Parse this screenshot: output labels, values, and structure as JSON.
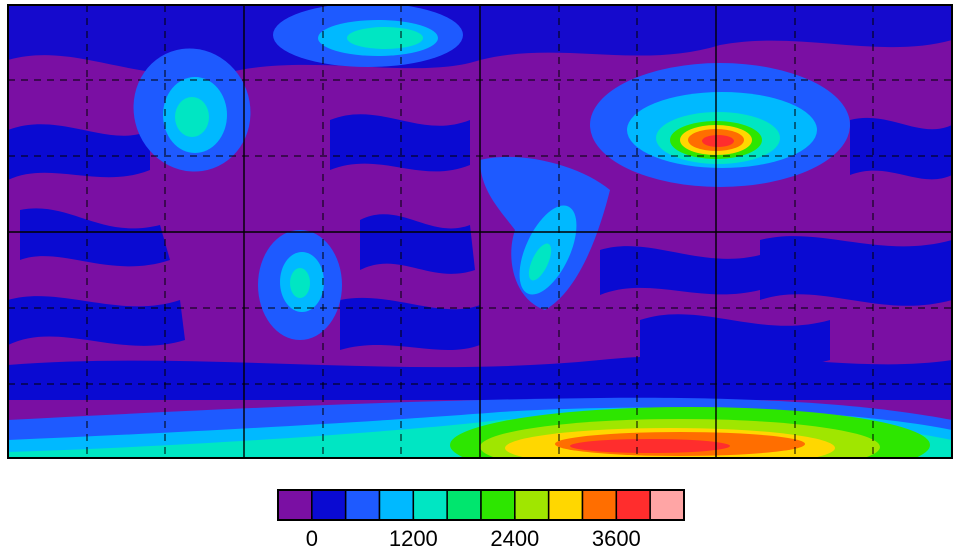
{
  "colorbar": {
    "range": [
      -400,
      4400
    ],
    "ticks": [
      0,
      1200,
      2400,
      3600
    ],
    "colors": [
      "#7a0fa3",
      "#0a0ad2",
      "#1e5aff",
      "#00b9ff",
      "#00e6c3",
      "#00e66e",
      "#2de600",
      "#a0e600",
      "#ffd700",
      "#ff6e00",
      "#ff2d2d",
      "#ffa5a5"
    ]
  }
}
